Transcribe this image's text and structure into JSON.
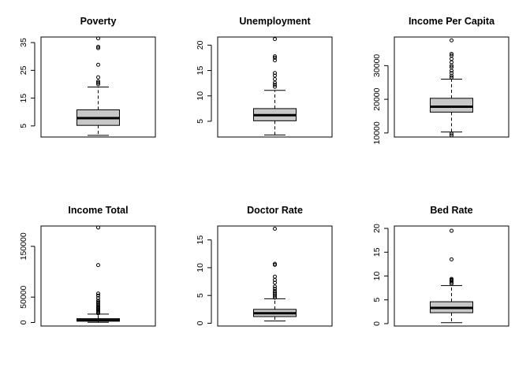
{
  "chart_data": [
    {
      "type": "boxplot",
      "title": "Poverty",
      "ylim": [
        1,
        37
      ],
      "yticks": [
        5,
        15,
        25,
        35
      ],
      "box": {
        "whisker_low": 1.6,
        "q1": 5.2,
        "median": 7.8,
        "q3": 10.8,
        "whisker_high": 19
      },
      "outliers": [
        20,
        20.5,
        21,
        22.5,
        27,
        33,
        33.5,
        36.5
      ]
    },
    {
      "type": "boxplot",
      "title": "Unemployment",
      "ylim": [
        1.9,
        21.6
      ],
      "yticks": [
        5,
        10,
        15,
        20
      ],
      "box": {
        "whisker_low": 2.3,
        "q1": 5.1,
        "median": 6.2,
        "q3": 7.5,
        "whisker_high": 11.1
      },
      "outliers": [
        11.8,
        12.2,
        12.6,
        13.3,
        14,
        14.5,
        17,
        17.5,
        17.8,
        21.2
      ]
    },
    {
      "type": "boxplot",
      "title": "Income Per Capita",
      "ylim": [
        8800,
        38500
      ],
      "yticks": [
        10000,
        20000,
        30000
      ],
      "box": {
        "whisker_low": 10300,
        "q1": 16200,
        "median": 17800,
        "q3": 20300,
        "whisker_high": 26000
      },
      "outliers": [
        9300,
        9800,
        26500,
        27000,
        27800,
        28500,
        29500,
        30000,
        31000,
        32000,
        33000,
        33500,
        37500
      ]
    },
    {
      "type": "boxplot",
      "title": "Income Total",
      "ylim": [
        -7000,
        190000
      ],
      "yticks": [
        0,
        50000,
        150000
      ],
      "box": {
        "whisker_low": 300,
        "q1": 2500,
        "median": 4500,
        "q3": 7500,
        "whisker_high": 16500
      },
      "outliers": [
        18000,
        20000,
        22000,
        24000,
        26000,
        28000,
        30000,
        32000,
        35000,
        38000,
        40000,
        43000,
        48000,
        53000,
        57000,
        113000,
        187000
      ]
    },
    {
      "type": "boxplot",
      "title": "Doctor Rate",
      "ylim": [
        -0.5,
        17.5
      ],
      "yticks": [
        0,
        5,
        10,
        15
      ],
      "box": {
        "whisker_low": 0.4,
        "q1": 1.2,
        "median": 1.8,
        "q3": 2.5,
        "whisker_high": 4.4
      },
      "outliers": [
        4.6,
        4.9,
        5.2,
        5.5,
        5.8,
        6.2,
        6.6,
        7.3,
        7.8,
        8.4,
        10.5,
        10.7,
        17
      ]
    },
    {
      "type": "boxplot",
      "title": "Bed Rate",
      "ylim": [
        -0.5,
        20.5
      ],
      "yticks": [
        0,
        5,
        10,
        15,
        20
      ],
      "box": {
        "whisker_low": 0.2,
        "q1": 2.3,
        "median": 3.3,
        "q3": 4.6,
        "whisker_high": 8
      },
      "outliers": [
        8.4,
        8.7,
        9,
        9.2,
        9.4,
        13.5,
        19.5
      ]
    }
  ],
  "colors": {
    "box_fill": "#c8c8c8",
    "stroke": "#000000",
    "background": "#ffffff"
  }
}
